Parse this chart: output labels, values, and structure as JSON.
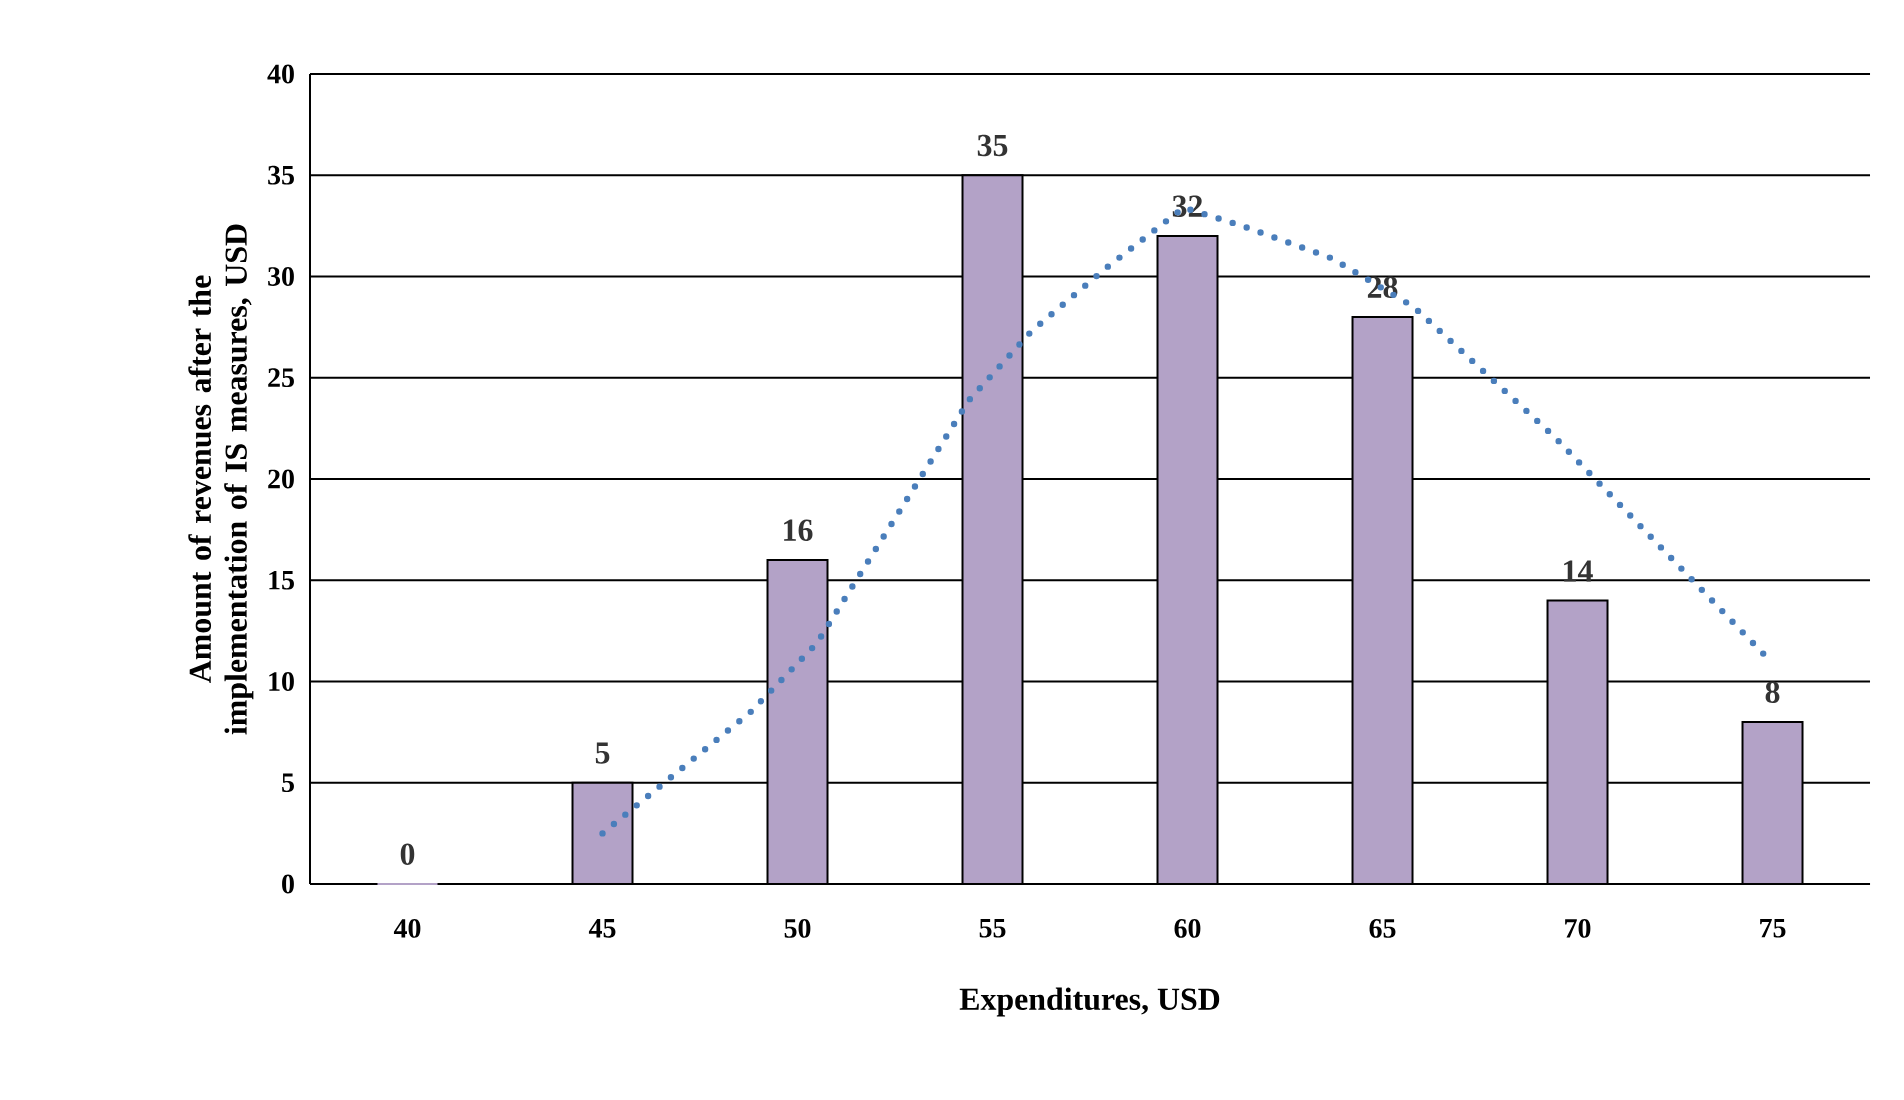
{
  "chart_data": {
    "type": "bar",
    "xlabel": "Expenditures, USD",
    "ylabel": "Amount of revenues after the implementation of IS measures, USD",
    "x": [
      40,
      45,
      50,
      55,
      60,
      65,
      70,
      75
    ],
    "series": [
      {
        "color": "#b3a2c7",
        "values": [
          0,
          5,
          16,
          35,
          32,
          28,
          14,
          8
        ],
        "value_labels": [
          "0",
          "5",
          "16",
          "35",
          "32",
          "28",
          "14",
          "8"
        ]
      },
      {
        "type": "line",
        "color": "#4a7ebb",
        "line_style": "dotted",
        "x": [
          45,
          46.9,
          48.8,
          50.5,
          51.8,
          53.1,
          54.4,
          56.0,
          57.9,
          59.9,
          61.4,
          63.7,
          65.8,
          67.6,
          69.4,
          71.1,
          72.8,
          74.5,
          74.8
        ],
        "values": [
          2.5,
          5.5,
          8.5,
          11.9,
          15.9,
          19.9,
          23.9,
          27.3,
          30.4,
          33.4,
          32.5,
          30.9,
          28.5,
          25.3,
          22.1,
          18.7,
          15.3,
          11.9,
          11.3
        ]
      }
    ],
    "xlim": [
      37.5,
      77.5
    ],
    "xticks": [
      40,
      45,
      50,
      55,
      60,
      65,
      70,
      75
    ],
    "ylim": [
      0,
      40
    ],
    "yticks": [
      0,
      5,
      10,
      15,
      20,
      25,
      30,
      35,
      40
    ],
    "grid": "y"
  }
}
